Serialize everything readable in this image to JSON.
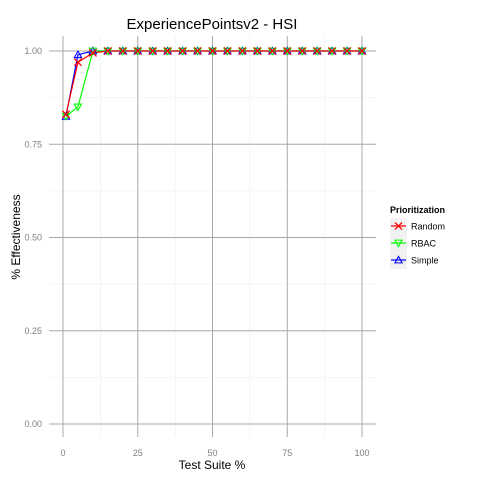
{
  "chart_data": {
    "type": "line",
    "title": "ExperiencePointsv2 - HSI",
    "xlabel": "Test Suite %",
    "ylabel": "% Effectiveness",
    "xlim": [
      0,
      100
    ],
    "ylim": [
      0,
      1
    ],
    "x_ticks": [
      0,
      25,
      50,
      75,
      100
    ],
    "x_tick_labels": [
      "0",
      "25",
      "50",
      "75",
      "100"
    ],
    "y_ticks": [
      0,
      0.25,
      0.5,
      0.75,
      1.0
    ],
    "y_tick_labels": [
      "0.00",
      "0.25",
      "0.50",
      "0.75",
      "1.00"
    ],
    "grid": true,
    "legend_position": "right",
    "legend_title": "Prioritization",
    "x": [
      1,
      5,
      10,
      15,
      20,
      25,
      30,
      35,
      40,
      45,
      50,
      55,
      60,
      65,
      70,
      75,
      80,
      85,
      90,
      95,
      100
    ],
    "series": [
      {
        "name": "Random",
        "color": "#ff0000",
        "marker": "x-cross",
        "values": [
          0.83,
          0.97,
          0.995,
          1.0,
          1.0,
          1.0,
          1.0,
          1.0,
          1.0,
          1.0,
          1.0,
          1.0,
          1.0,
          1.0,
          1.0,
          1.0,
          1.0,
          1.0,
          1.0,
          1.0,
          1.0
        ]
      },
      {
        "name": "RBAC",
        "color": "#00ff00",
        "marker": "triangle-down",
        "values": [
          0.825,
          0.85,
          1.0,
          1.0,
          1.0,
          1.0,
          1.0,
          1.0,
          1.0,
          1.0,
          1.0,
          1.0,
          1.0,
          1.0,
          1.0,
          1.0,
          1.0,
          1.0,
          1.0,
          1.0,
          1.0
        ]
      },
      {
        "name": "Simple",
        "color": "#0000ff",
        "marker": "triangle-up",
        "values": [
          0.825,
          0.99,
          1.0,
          1.0,
          1.0,
          1.0,
          1.0,
          1.0,
          1.0,
          1.0,
          1.0,
          1.0,
          1.0,
          1.0,
          1.0,
          1.0,
          1.0,
          1.0,
          1.0,
          1.0,
          1.0
        ]
      }
    ]
  }
}
